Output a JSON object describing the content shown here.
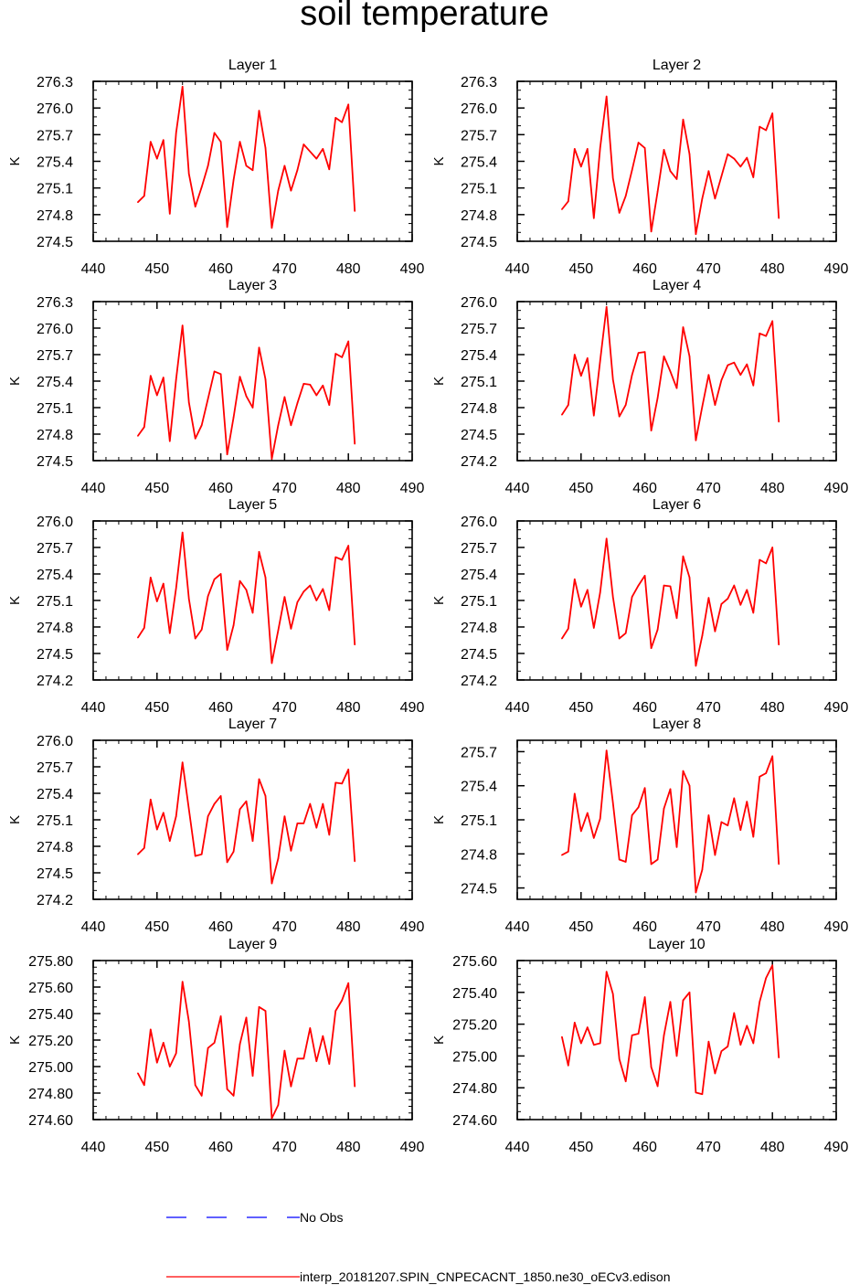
{
  "title": "soil temperature",
  "legend": [
    {
      "label": "No Obs",
      "color": "#0000ff",
      "style": "dashed"
    },
    {
      "label": "interp_20181207.SPIN_CNPECACNT_1850.ne30_oECv3.edison",
      "color": "#ff0000",
      "style": "solid"
    }
  ],
  "chart_data": [
    {
      "type": "line",
      "title": "Layer 1",
      "ylabel": "K",
      "xlim": [
        440,
        490
      ],
      "xticks": [
        "440",
        "450",
        "460",
        "470",
        "480",
        "490"
      ],
      "ylim": [
        274.5,
        276.3
      ],
      "yticks": [
        "274.5",
        "274.8",
        "275.1",
        "275.4",
        "275.7",
        "276.0",
        "276.3"
      ],
      "x": [
        447,
        448,
        449,
        450,
        451,
        452,
        453,
        454,
        455,
        456,
        457,
        458,
        459,
        460,
        461,
        462,
        463,
        464,
        465,
        466,
        467,
        468,
        469,
        470,
        471,
        472,
        473,
        474,
        475,
        476,
        477,
        478,
        479,
        480,
        481
      ],
      "values": [
        274.94,
        275.01,
        275.62,
        275.43,
        275.64,
        274.81,
        275.72,
        276.24,
        275.26,
        274.89,
        275.11,
        275.35,
        275.72,
        275.62,
        274.66,
        275.19,
        275.62,
        275.35,
        275.3,
        275.97,
        275.55,
        274.65,
        275.07,
        275.35,
        275.07,
        275.3,
        275.59,
        275.51,
        275.43,
        275.54,
        275.31,
        275.89,
        275.84,
        276.04,
        274.84
      ]
    },
    {
      "type": "line",
      "title": "Layer 2",
      "ylabel": "K",
      "xlim": [
        440,
        490
      ],
      "xticks": [
        "440",
        "450",
        "460",
        "470",
        "480",
        "490"
      ],
      "ylim": [
        274.5,
        276.3
      ],
      "yticks": [
        "274.5",
        "274.8",
        "275.1",
        "275.4",
        "275.7",
        "276.0",
        "276.3"
      ],
      "x": [
        447,
        448,
        449,
        450,
        451,
        452,
        453,
        454,
        455,
        456,
        457,
        458,
        459,
        460,
        461,
        462,
        463,
        464,
        465,
        466,
        467,
        468,
        469,
        470,
        471,
        472,
        473,
        474,
        475,
        476,
        477,
        478,
        479,
        480,
        481
      ],
      "values": [
        274.86,
        274.95,
        275.54,
        275.34,
        275.54,
        274.76,
        275.55,
        276.13,
        275.21,
        274.82,
        275.01,
        275.3,
        275.61,
        275.55,
        274.61,
        275.06,
        275.53,
        275.29,
        275.2,
        275.87,
        275.48,
        274.58,
        274.98,
        275.29,
        274.98,
        275.23,
        275.48,
        275.43,
        275.34,
        275.44,
        275.22,
        275.79,
        275.75,
        275.94,
        274.76
      ]
    },
    {
      "type": "line",
      "title": "Layer 3",
      "ylabel": "K",
      "xlim": [
        440,
        490
      ],
      "xticks": [
        "440",
        "450",
        "460",
        "470",
        "480",
        "490"
      ],
      "ylim": [
        274.5,
        276.3
      ],
      "yticks": [
        "274.5",
        "274.8",
        "275.1",
        "275.4",
        "275.7",
        "276.0",
        "276.3"
      ],
      "x": [
        447,
        448,
        449,
        450,
        451,
        452,
        453,
        454,
        455,
        456,
        457,
        458,
        459,
        460,
        461,
        462,
        463,
        464,
        465,
        466,
        467,
        468,
        469,
        470,
        471,
        472,
        473,
        474,
        475,
        476,
        477,
        478,
        479,
        480,
        481
      ],
      "values": [
        274.78,
        274.88,
        275.46,
        275.24,
        275.44,
        274.72,
        275.42,
        276.03,
        275.16,
        274.75,
        274.9,
        275.2,
        275.51,
        275.48,
        274.57,
        274.99,
        275.45,
        275.23,
        275.1,
        275.78,
        275.42,
        274.52,
        274.9,
        275.22,
        274.9,
        275.15,
        275.37,
        275.36,
        275.24,
        275.35,
        275.13,
        275.71,
        275.67,
        275.85,
        274.69
      ]
    },
    {
      "type": "line",
      "title": "Layer 4",
      "ylabel": "K",
      "xlim": [
        440,
        490
      ],
      "xticks": [
        "440",
        "450",
        "460",
        "470",
        "480",
        "490"
      ],
      "ylim": [
        274.2,
        276.0
      ],
      "yticks": [
        "274.2",
        "274.5",
        "274.8",
        "275.1",
        "275.4",
        "275.7",
        "276.0"
      ],
      "x": [
        447,
        448,
        449,
        450,
        451,
        452,
        453,
        454,
        455,
        456,
        457,
        458,
        459,
        460,
        461,
        462,
        463,
        464,
        465,
        466,
        467,
        468,
        469,
        470,
        471,
        472,
        473,
        474,
        475,
        476,
        477,
        478,
        479,
        480,
        481
      ],
      "values": [
        274.72,
        274.83,
        275.4,
        275.16,
        275.36,
        274.71,
        275.33,
        275.94,
        275.12,
        274.7,
        274.83,
        275.17,
        275.42,
        275.43,
        274.54,
        274.91,
        275.38,
        275.21,
        275.02,
        275.71,
        275.38,
        274.43,
        274.81,
        275.17,
        274.83,
        275.11,
        275.28,
        275.31,
        275.17,
        275.29,
        275.05,
        275.64,
        275.61,
        275.78,
        274.64
      ]
    },
    {
      "type": "line",
      "title": "Layer 5",
      "ylabel": "K",
      "xlim": [
        440,
        490
      ],
      "xticks": [
        "440",
        "450",
        "460",
        "470",
        "480",
        "490"
      ],
      "ylim": [
        274.2,
        276.0
      ],
      "yticks": [
        "274.2",
        "274.5",
        "274.8",
        "275.1",
        "275.4",
        "275.7",
        "276.0"
      ],
      "x": [
        447,
        448,
        449,
        450,
        451,
        452,
        453,
        454,
        455,
        456,
        457,
        458,
        459,
        460,
        461,
        462,
        463,
        464,
        465,
        466,
        467,
        468,
        469,
        470,
        471,
        472,
        473,
        474,
        475,
        476,
        477,
        478,
        479,
        480,
        481
      ],
      "values": [
        274.68,
        274.79,
        275.36,
        275.09,
        275.29,
        274.73,
        275.24,
        275.87,
        275.12,
        274.67,
        274.77,
        275.15,
        275.34,
        275.4,
        274.54,
        274.82,
        275.32,
        275.22,
        274.96,
        275.65,
        275.36,
        274.39,
        274.76,
        275.14,
        274.78,
        275.08,
        275.2,
        275.27,
        275.1,
        275.23,
        274.99,
        275.59,
        275.56,
        275.72,
        274.6
      ]
    },
    {
      "type": "line",
      "title": "Layer 6",
      "ylabel": "K",
      "xlim": [
        440,
        490
      ],
      "xticks": [
        "440",
        "450",
        "460",
        "470",
        "480",
        "490"
      ],
      "ylim": [
        274.2,
        276.0
      ],
      "yticks": [
        "274.2",
        "274.5",
        "274.8",
        "275.1",
        "275.4",
        "275.7",
        "276.0"
      ],
      "x": [
        447,
        448,
        449,
        450,
        451,
        452,
        453,
        454,
        455,
        456,
        457,
        458,
        459,
        460,
        461,
        462,
        463,
        464,
        465,
        466,
        467,
        468,
        469,
        470,
        471,
        472,
        473,
        474,
        475,
        476,
        477,
        478,
        479,
        480,
        481
      ],
      "values": [
        274.67,
        274.78,
        275.34,
        275.03,
        275.22,
        274.79,
        275.19,
        275.8,
        275.14,
        274.67,
        274.73,
        275.14,
        275.27,
        275.38,
        274.56,
        274.77,
        275.27,
        275.26,
        274.9,
        275.6,
        275.36,
        274.36,
        274.7,
        275.13,
        274.75,
        275.06,
        275.12,
        275.27,
        275.05,
        275.22,
        274.96,
        275.56,
        275.52,
        275.7,
        274.6
      ]
    },
    {
      "type": "line",
      "title": "Layer 7",
      "ylabel": "K",
      "xlim": [
        440,
        490
      ],
      "xticks": [
        "440",
        "450",
        "460",
        "470",
        "480",
        "490"
      ],
      "ylim": [
        274.2,
        276.0
      ],
      "yticks": [
        "274.2",
        "274.5",
        "274.8",
        "275.1",
        "275.4",
        "275.7",
        "276.0"
      ],
      "x": [
        447,
        448,
        449,
        450,
        451,
        452,
        453,
        454,
        455,
        456,
        457,
        458,
        459,
        460,
        461,
        462,
        463,
        464,
        465,
        466,
        467,
        468,
        469,
        470,
        471,
        472,
        473,
        474,
        475,
        476,
        477,
        478,
        479,
        480,
        481
      ],
      "values": [
        274.71,
        274.78,
        275.33,
        274.99,
        275.18,
        274.86,
        275.14,
        275.75,
        275.22,
        274.69,
        274.71,
        275.14,
        275.28,
        275.37,
        274.62,
        274.74,
        275.22,
        275.31,
        274.86,
        275.56,
        275.37,
        274.38,
        274.66,
        275.14,
        274.75,
        275.06,
        275.06,
        275.28,
        275.01,
        275.28,
        274.93,
        275.52,
        275.51,
        275.67,
        274.63
      ]
    },
    {
      "type": "line",
      "title": "Layer 8",
      "ylabel": "K",
      "xlim": [
        440,
        490
      ],
      "xticks": [
        "440",
        "450",
        "460",
        "470",
        "480",
        "490"
      ],
      "ylim": [
        274.4,
        275.8
      ],
      "yticks": [
        "274.5",
        "274.8",
        "275.1",
        "275.4",
        "275.7"
      ],
      "x": [
        447,
        448,
        449,
        450,
        451,
        452,
        453,
        454,
        455,
        456,
        457,
        458,
        459,
        460,
        461,
        462,
        463,
        464,
        465,
        466,
        467,
        468,
        469,
        470,
        471,
        472,
        473,
        474,
        475,
        476,
        477,
        478,
        479,
        480,
        481
      ],
      "values": [
        274.79,
        274.82,
        275.33,
        275.0,
        275.16,
        274.94,
        275.11,
        275.71,
        275.25,
        274.75,
        274.73,
        275.14,
        275.21,
        275.38,
        274.71,
        274.75,
        275.2,
        275.37,
        274.86,
        275.53,
        275.4,
        274.46,
        274.66,
        275.14,
        274.79,
        275.08,
        275.05,
        275.29,
        275.01,
        275.26,
        274.95,
        275.48,
        275.51,
        275.66,
        274.71
      ]
    },
    {
      "type": "line",
      "title": "Layer 9",
      "ylabel": "K",
      "xlim": [
        440,
        490
      ],
      "xticks": [
        "440",
        "450",
        "460",
        "470",
        "480",
        "490"
      ],
      "ylim": [
        274.6,
        275.8
      ],
      "yticks": [
        "274.60",
        "274.80",
        "275.00",
        "275.20",
        "275.40",
        "275.60",
        "275.80"
      ],
      "x": [
        447,
        448,
        449,
        450,
        451,
        452,
        453,
        454,
        455,
        456,
        457,
        458,
        459,
        460,
        461,
        462,
        463,
        464,
        465,
        466,
        467,
        468,
        469,
        470,
        471,
        472,
        473,
        474,
        475,
        476,
        477,
        478,
        479,
        480,
        481
      ],
      "values": [
        274.95,
        274.86,
        275.28,
        275.03,
        275.18,
        275.0,
        275.1,
        275.64,
        275.34,
        274.86,
        274.78,
        275.14,
        275.18,
        275.38,
        274.83,
        274.78,
        275.17,
        275.37,
        274.93,
        275.45,
        275.42,
        274.61,
        274.71,
        275.12,
        274.85,
        275.06,
        275.06,
        275.29,
        275.04,
        275.23,
        275.02,
        275.42,
        275.5,
        275.63,
        274.85
      ]
    },
    {
      "type": "line",
      "title": "Layer 10",
      "ylabel": "K",
      "xlim": [
        440,
        490
      ],
      "xticks": [
        "440",
        "450",
        "460",
        "470",
        "480",
        "490"
      ],
      "ylim": [
        274.6,
        275.6
      ],
      "yticks": [
        "274.60",
        "274.80",
        "275.00",
        "275.20",
        "275.40",
        "275.60"
      ],
      "x": [
        447,
        448,
        449,
        450,
        451,
        452,
        453,
        454,
        455,
        456,
        457,
        458,
        459,
        460,
        461,
        462,
        463,
        464,
        465,
        466,
        467,
        468,
        469,
        470,
        471,
        472,
        473,
        474,
        475,
        476,
        477,
        478,
        479,
        480,
        481
      ],
      "values": [
        275.12,
        274.94,
        275.21,
        275.08,
        275.18,
        275.07,
        275.08,
        275.53,
        275.39,
        274.98,
        274.84,
        275.13,
        275.14,
        275.37,
        274.93,
        274.81,
        275.13,
        275.34,
        275.0,
        275.35,
        275.4,
        274.77,
        274.76,
        275.09,
        274.89,
        275.03,
        275.06,
        275.27,
        275.07,
        275.19,
        275.08,
        275.34,
        275.49,
        275.57,
        274.99
      ]
    }
  ]
}
